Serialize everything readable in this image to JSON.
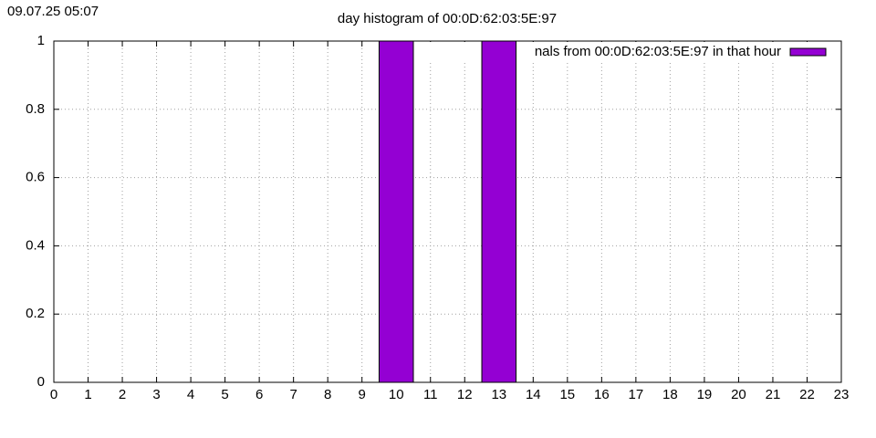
{
  "chart_data": {
    "type": "bar",
    "timestamp": "09.07.25 05:07",
    "title": "day histogram of 00:0D:62:03:5E:97",
    "x": [
      0,
      1,
      2,
      3,
      4,
      5,
      6,
      7,
      8,
      9,
      10,
      11,
      12,
      13,
      14,
      15,
      16,
      17,
      18,
      19,
      20,
      21,
      22,
      23
    ],
    "series": [
      {
        "name": "nals from 00:0D:62:03:5E:97 in that hour",
        "color": "#9400d3",
        "values": [
          0,
          0,
          0,
          0,
          0,
          0,
          0,
          0,
          0,
          0,
          1,
          0,
          0,
          1,
          0,
          0,
          0,
          0,
          0,
          0,
          0,
          0,
          0,
          0
        ]
      }
    ],
    "xlim": [
      0,
      23
    ],
    "xticks": [
      0,
      1,
      2,
      3,
      4,
      5,
      6,
      7,
      8,
      9,
      10,
      11,
      12,
      13,
      14,
      15,
      16,
      17,
      18,
      19,
      20,
      21,
      22,
      23
    ],
    "ylim": [
      0,
      1
    ],
    "yticks": [
      0,
      0.2,
      0.4,
      0.6,
      0.8,
      1
    ],
    "grid": true,
    "legend": "top-right"
  }
}
